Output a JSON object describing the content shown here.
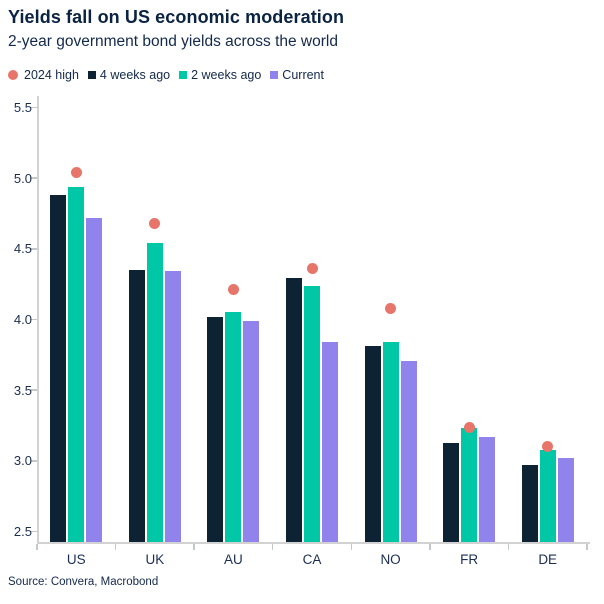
{
  "header": {
    "title": "Yields fall on US economic moderation",
    "subtitle": "2-year government bond yields across the world"
  },
  "legend": {
    "items": [
      {
        "label": "2024 high",
        "marker": "circle",
        "color": "#e8756a"
      },
      {
        "label": "4 weeks ago",
        "marker": "square",
        "color": "#0d2233"
      },
      {
        "label": "2 weeks ago",
        "marker": "square",
        "color": "#00c7a5"
      },
      {
        "label": "Current",
        "marker": "square",
        "color": "#9183ec"
      }
    ]
  },
  "chart_data": {
    "type": "bar",
    "title": "Yields fall on US economic moderation",
    "subtitle": "2-year government bond yields across the world",
    "categories": [
      "US",
      "UK",
      "AU",
      "CA",
      "NO",
      "FR",
      "DE"
    ],
    "series": [
      {
        "name": "2024 high",
        "render": "scatter",
        "color": "#e8756a",
        "values": [
          5.04,
          4.68,
          4.21,
          4.36,
          4.08,
          3.24,
          3.1
        ]
      },
      {
        "name": "4 weeks ago",
        "render": "bar",
        "color": "#0d2233",
        "values": [
          4.88,
          4.35,
          4.02,
          4.29,
          3.81,
          3.13,
          2.97
        ]
      },
      {
        "name": "2 weeks ago",
        "render": "bar",
        "color": "#00c7a5",
        "values": [
          4.94,
          4.54,
          4.05,
          4.24,
          3.84,
          3.23,
          3.08
        ]
      },
      {
        "name": "Current",
        "render": "bar",
        "color": "#9183ec",
        "values": [
          4.72,
          4.34,
          3.99,
          3.84,
          3.71,
          3.17,
          3.02
        ]
      }
    ],
    "ylim": [
      2.42,
      5.58
    ],
    "yticks": [
      5.5,
      5.0,
      4.5,
      4.0,
      3.5,
      3.0,
      2.5
    ],
    "ytick_labels": [
      "5.5",
      "5.0",
      "4.5",
      "4.0",
      "3.5",
      "3.0",
      "2.5"
    ],
    "xlabel": "",
    "ylabel": "",
    "grid": false,
    "legend_position": "top"
  },
  "source": "Source: Convera, Macrobond",
  "colors": {
    "title_text": "#0a2342",
    "body_text": "#13294b",
    "axis_text": "#1b2e52",
    "axis_line": "#d2d2d2"
  }
}
